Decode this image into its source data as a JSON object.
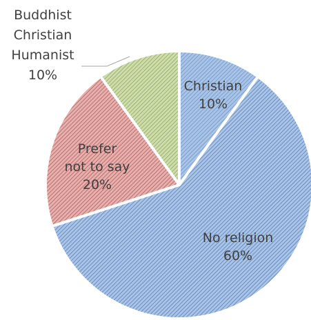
{
  "chart_data": {
    "type": "pie",
    "title": "",
    "slices": [
      {
        "label_lines": [
          "Christian",
          "10%"
        ],
        "value": 10,
        "color": "#a9c4e6",
        "stripe": "#6f95c9"
      },
      {
        "label_lines": [
          "No religion",
          "60%"
        ],
        "value": 60,
        "color": "#a9c4e6",
        "stripe": "#5b7fb7"
      },
      {
        "label_lines": [
          "Prefer",
          "not to say",
          "20%"
        ],
        "value": 20,
        "color": "#e6b0ae",
        "stripe": "#b25f5c"
      },
      {
        "label_lines": [
          "Buddhist",
          "Christian",
          "Humanist",
          "10%"
        ],
        "value": 10,
        "color": "#cfdcaf",
        "stripe": "#8faa52"
      }
    ]
  }
}
